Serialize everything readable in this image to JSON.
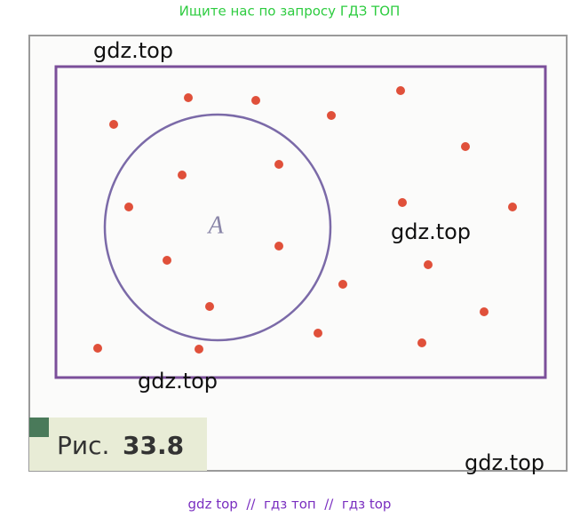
{
  "header": {
    "text": "Ищите нас по запросу ГДЗ ТОП"
  },
  "figure": {
    "set_label": "A",
    "caption_prefix": "Рис.",
    "caption_number": "33.8"
  },
  "watermarks": [
    "gdz.top",
    "gdz.top",
    "gdz.top",
    "gdz.top"
  ],
  "footer": {
    "text": "gdz top  //  гдз топ  //  гдз top"
  }
}
